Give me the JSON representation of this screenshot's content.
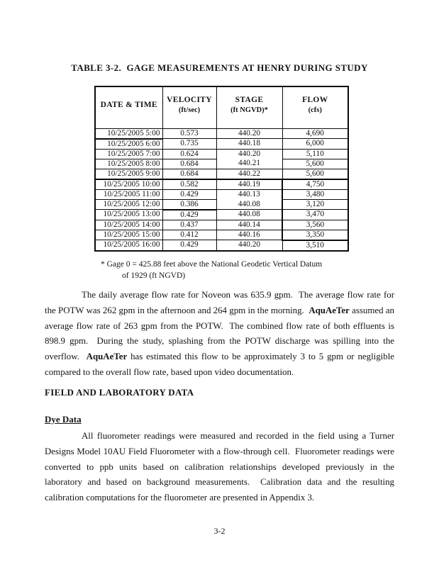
{
  "document": {
    "title": "TABLE 3-2.  GAGE MEASUREMENTS AT HENRY DURING STUDY",
    "page_number": "3-2"
  },
  "table": {
    "headers": [
      {
        "label": "DATE & TIME",
        "unit": ""
      },
      {
        "label": "VELOCITY",
        "unit": "(ft/sec)"
      },
      {
        "label": "STAGE",
        "unit": "(ft NGVD)*"
      },
      {
        "label": "FLOW",
        "unit": "(cfs)"
      }
    ],
    "rows": [
      [
        "10/25/2005 5:00",
        "0.573",
        "440.20",
        "4,690"
      ],
      [
        "10/25/2005 6:00",
        "0.735",
        "440.18",
        "6,000"
      ],
      [
        "10/25/2005 7:00",
        "0.624",
        "440.20",
        "5,110"
      ],
      [
        "10/25/2005 8:00",
        "0.684",
        "440.21",
        "5,600"
      ],
      [
        "10/25/2005 9:00",
        "0.684",
        "440.22",
        "5,600"
      ],
      [
        "10/25/2005 10:00",
        "0.582",
        "440.19",
        "4,750"
      ],
      [
        "10/25/2005 11:00",
        "0.429",
        "440.13",
        "3,480"
      ],
      [
        "10/25/2005 12:00",
        "0.386",
        "440.08",
        "3,120"
      ],
      [
        "10/25/2005 13:00",
        "0.429",
        "440.08",
        "3,470"
      ],
      [
        "10/25/2005 14:00",
        "0.437",
        "440.14",
        "3,560"
      ],
      [
        "10/25/2005 15:00",
        "0.412",
        "440.16",
        "3,350"
      ],
      [
        "10/25/2005 16:00",
        "0.429",
        "440.20",
        "3,510"
      ]
    ],
    "footnote": {
      "line1": "* Gage 0 = 425.88 feet above the National Geodetic Vertical Datum",
      "line2": "of 1929 (ft NGVD)"
    }
  },
  "body": {
    "paragraph1": {
      "s0": "The daily average flow rate for Noveon was 635.9 gpm.  The average flow rate for the POTW was 262 gpm in the afternoon and 264 gpm in the morning.  ",
      "bold1": "AquAeTer",
      "s1": " assumed an average flow rate of 263 gpm from the POTW.  The combined flow rate of both effluents is 898.9 gpm.  During the study, splashing from the POTW discharge was spilling into the overflow.  ",
      "bold2": "AquAeTer",
      "s2": " has estimated this flow to be approximately 3 to 5 gpm or negligible compared to the overall flow rate, based upon video documentation."
    },
    "section_heading": "FIELD AND LABORATORY DATA",
    "subsection_heading": "Dye Data",
    "paragraph2": "All fluorometer readings were measured and recorded in the field using a Turner Designs Model 10AU Field Fluorometer with a flow-through cell.  Fluorometer readings were converted to ppb units based on calibration relationships developed previously in the laboratory and based on background measurements.  Calibration data and the resulting calibration computations for the fluorometer are presented in Appendix 3."
  }
}
